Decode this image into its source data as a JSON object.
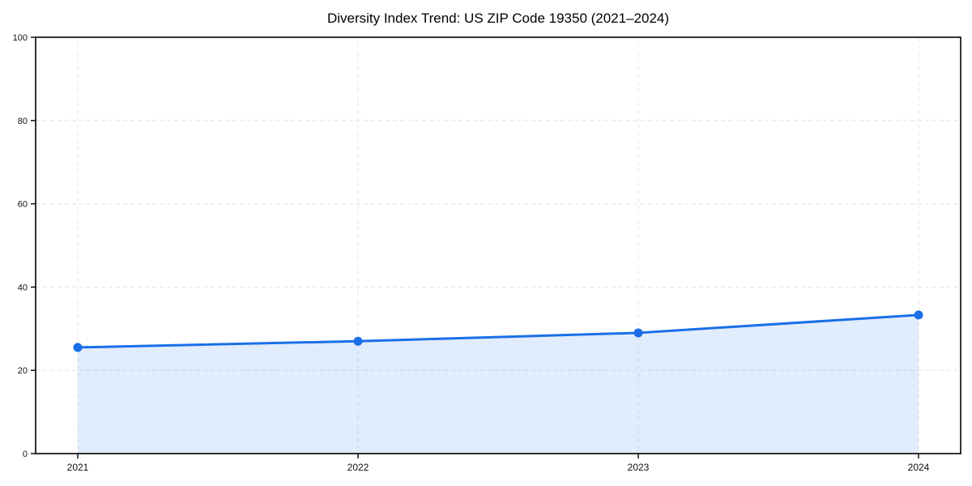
{
  "title": "Diversity Index Trend: US ZIP Code 19350 (2021–2024)",
  "chart_data": {
    "type": "line",
    "title": "Diversity Index Trend: US ZIP Code 19350 (2021–2024)",
    "x": [
      "2021",
      "2022",
      "2023",
      "2024"
    ],
    "series": [
      {
        "name": "Diversity Index",
        "values": [
          25.5,
          27.0,
          29.0,
          33.3
        ]
      }
    ],
    "xlabel": "",
    "ylabel": "",
    "ylim": [
      0,
      100
    ],
    "yticks": [
      0,
      20,
      40,
      60,
      80,
      100
    ],
    "grid": "dashed light-gray, horizontal and vertical",
    "legend": "none",
    "area_fill": true,
    "markers": true,
    "colors": {
      "line": "#1a6fe8",
      "marker": "#1a6fe8",
      "area": "rgba(26,111,232,0.13)",
      "grid": "#e3e3e3",
      "spine": "#000000",
      "tick_text": "#111111",
      "background": "#ffffff"
    }
  }
}
